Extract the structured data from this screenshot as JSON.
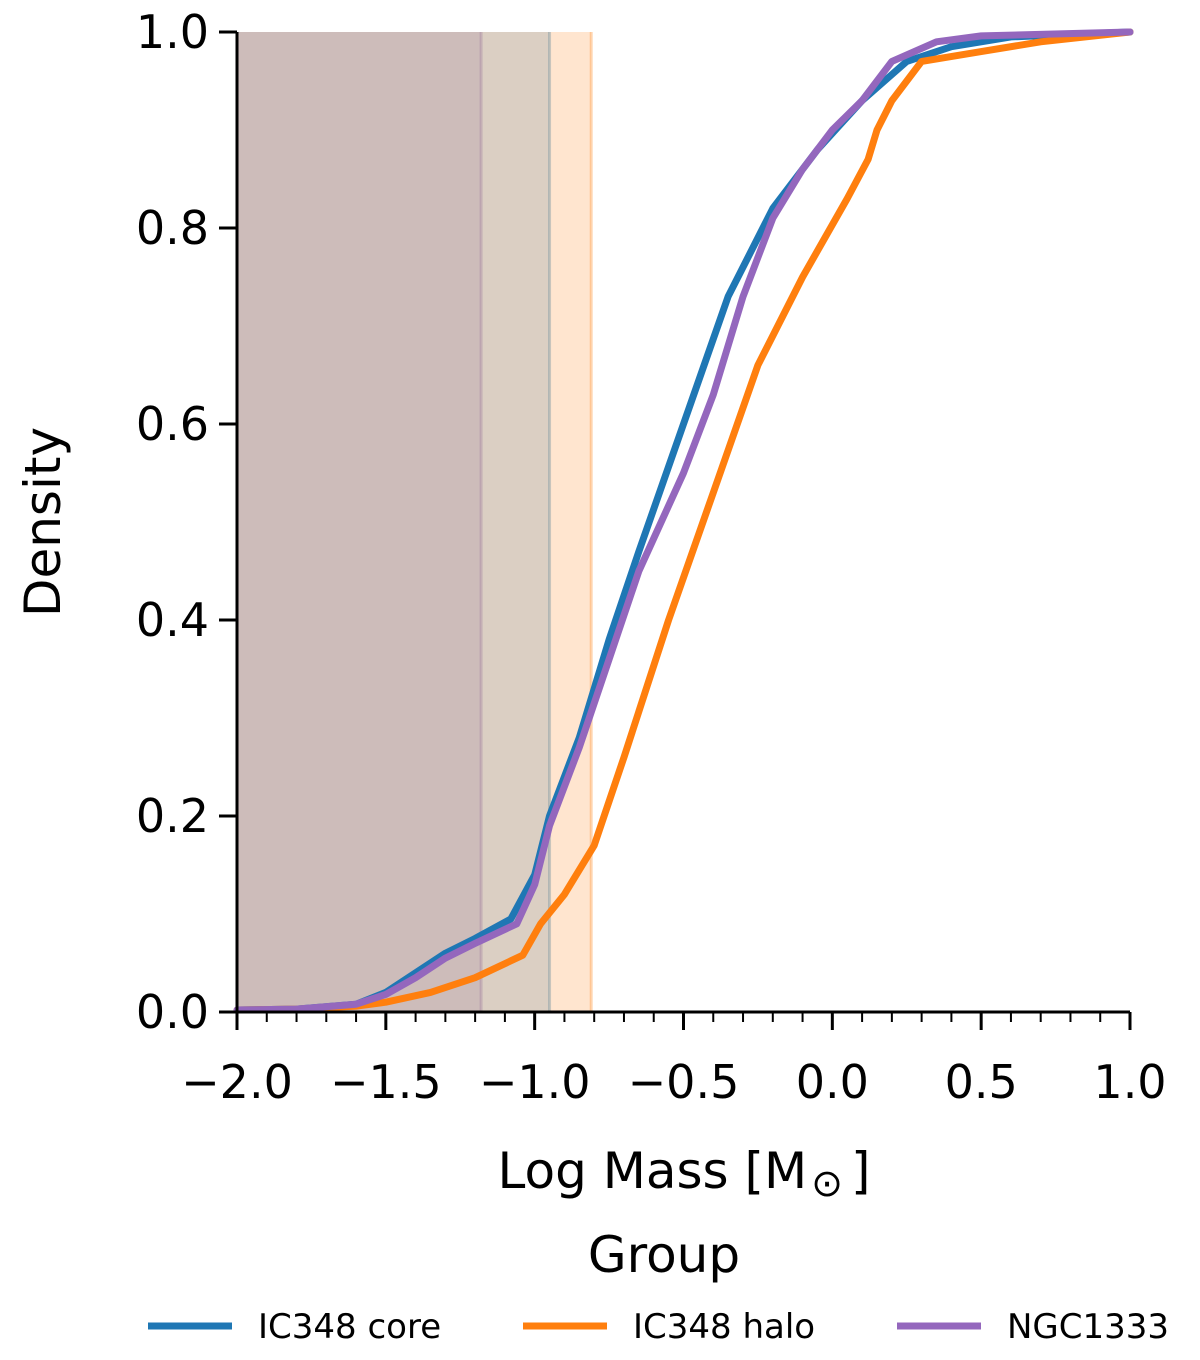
{
  "chart_data": {
    "type": "line",
    "xlabel": "Log Mass [M",
    "xlabel_symbol": "⊙",
    "xlabel_suffix": "]",
    "ylabel": "Density",
    "xlim": [
      -2.0,
      1.0
    ],
    "ylim": [
      0.0,
      1.0
    ],
    "x_ticks": [
      -2.0,
      -1.5,
      -1.0,
      -0.5,
      0.0,
      0.5,
      1.0
    ],
    "x_tick_labels": [
      "−2.0",
      "−1.5",
      "−1.0",
      "−0.5",
      "0.0",
      "0.5",
      "1.0"
    ],
    "y_ticks": [
      0.0,
      0.2,
      0.4,
      0.6,
      0.8,
      1.0
    ],
    "y_tick_labels": [
      "0.0",
      "0.2",
      "0.4",
      "0.6",
      "0.8",
      "1.0"
    ],
    "grid": false,
    "legend": {
      "title": "Group",
      "placement": "bottom"
    },
    "shaded_regions": [
      {
        "x0": -2.0,
        "x1": -1.18,
        "color": "#9467bd"
      },
      {
        "x0": -2.0,
        "x1": -0.95,
        "color": "#1f77b4"
      },
      {
        "x0": -2.0,
        "x1": -0.81,
        "color": "#ff7f0e"
      }
    ],
    "series": [
      {
        "name": "IC348 core",
        "color": "#1f77b4",
        "points": [
          [
            -2.0,
            0.002
          ],
          [
            -1.8,
            0.003
          ],
          [
            -1.6,
            0.008
          ],
          [
            -1.5,
            0.02
          ],
          [
            -1.4,
            0.04
          ],
          [
            -1.3,
            0.06
          ],
          [
            -1.2,
            0.075
          ],
          [
            -1.08,
            0.095
          ],
          [
            -1.0,
            0.14
          ],
          [
            -0.95,
            0.2
          ],
          [
            -0.85,
            0.28
          ],
          [
            -0.75,
            0.38
          ],
          [
            -0.65,
            0.47
          ],
          [
            -0.5,
            0.6
          ],
          [
            -0.35,
            0.73
          ],
          [
            -0.2,
            0.82
          ],
          [
            -0.05,
            0.88
          ],
          [
            0.1,
            0.93
          ],
          [
            0.25,
            0.97
          ],
          [
            0.4,
            0.985
          ],
          [
            0.6,
            0.995
          ],
          [
            1.0,
            1.0
          ]
        ]
      },
      {
        "name": "IC348 halo",
        "color": "#ff7f0e",
        "points": [
          [
            -2.0,
            0.002
          ],
          [
            -1.8,
            0.003
          ],
          [
            -1.6,
            0.006
          ],
          [
            -1.5,
            0.01
          ],
          [
            -1.35,
            0.02
          ],
          [
            -1.2,
            0.035
          ],
          [
            -1.04,
            0.058
          ],
          [
            -0.98,
            0.09
          ],
          [
            -0.9,
            0.12
          ],
          [
            -0.8,
            0.17
          ],
          [
            -0.7,
            0.26
          ],
          [
            -0.55,
            0.4
          ],
          [
            -0.4,
            0.53
          ],
          [
            -0.25,
            0.66
          ],
          [
            -0.1,
            0.75
          ],
          [
            0.05,
            0.83
          ],
          [
            0.12,
            0.87
          ],
          [
            0.15,
            0.9
          ],
          [
            0.2,
            0.93
          ],
          [
            0.3,
            0.97
          ],
          [
            0.5,
            0.98
          ],
          [
            0.7,
            0.99
          ],
          [
            1.0,
            1.0
          ]
        ]
      },
      {
        "name": "NGC1333",
        "color": "#9467bd",
        "points": [
          [
            -2.0,
            0.002
          ],
          [
            -1.8,
            0.003
          ],
          [
            -1.6,
            0.008
          ],
          [
            -1.5,
            0.018
          ],
          [
            -1.4,
            0.035
          ],
          [
            -1.3,
            0.055
          ],
          [
            -1.2,
            0.07
          ],
          [
            -1.06,
            0.09
          ],
          [
            -1.0,
            0.13
          ],
          [
            -0.95,
            0.19
          ],
          [
            -0.85,
            0.27
          ],
          [
            -0.75,
            0.36
          ],
          [
            -0.65,
            0.45
          ],
          [
            -0.5,
            0.55
          ],
          [
            -0.4,
            0.63
          ],
          [
            -0.3,
            0.73
          ],
          [
            -0.2,
            0.81
          ],
          [
            -0.1,
            0.86
          ],
          [
            0.0,
            0.9
          ],
          [
            0.1,
            0.93
          ],
          [
            0.2,
            0.97
          ],
          [
            0.35,
            0.99
          ],
          [
            0.5,
            0.996
          ],
          [
            1.0,
            1.0
          ]
        ]
      }
    ]
  }
}
